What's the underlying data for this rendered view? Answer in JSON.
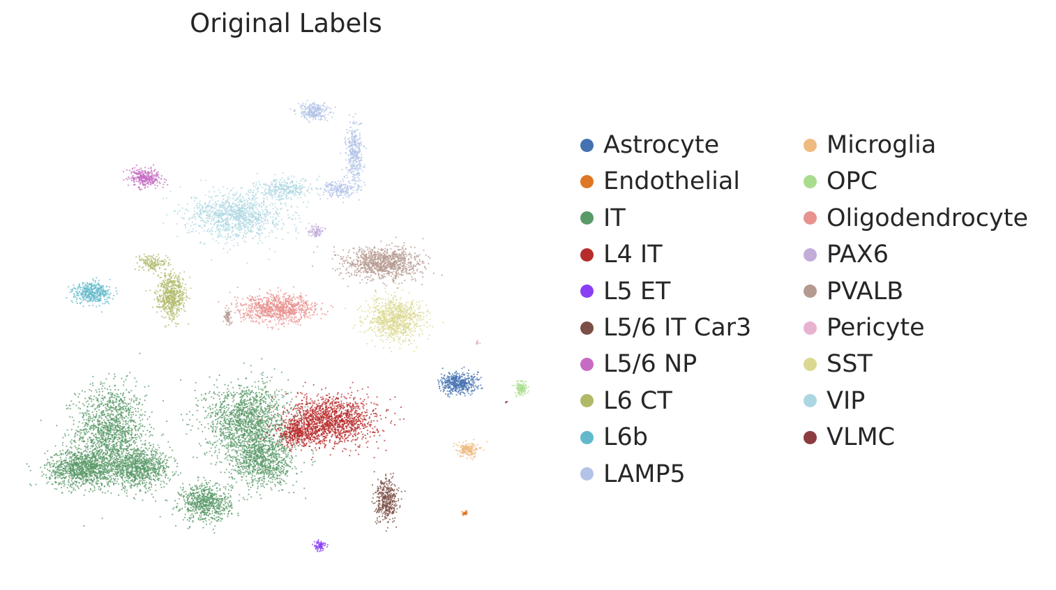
{
  "chart_data": {
    "type": "scatter",
    "title": "Original Labels",
    "xlabel": "",
    "ylabel": "",
    "grid": false,
    "axes_visible": false,
    "legend_placement": "right",
    "legend_columns": 2,
    "categories": [
      {
        "name": "Astrocyte",
        "color": "#4471b0"
      },
      {
        "name": "Endothelial",
        "color": "#dd7726"
      },
      {
        "name": "IT",
        "color": "#5a9a68"
      },
      {
        "name": "L4 IT",
        "color": "#b82b2b"
      },
      {
        "name": "L5 ET",
        "color": "#8a3ff5"
      },
      {
        "name": "L5/6 IT Car3",
        "color": "#7b4f46"
      },
      {
        "name": "L5/6 NP",
        "color": "#c66bc3"
      },
      {
        "name": "L6 CT",
        "color": "#b1b969"
      },
      {
        "name": "L6b",
        "color": "#62b9cb"
      },
      {
        "name": "LAMP5",
        "color": "#b2c3e7"
      },
      {
        "name": "Microglia",
        "color": "#eeba7e"
      },
      {
        "name": "OPC",
        "color": "#a9dd8d"
      },
      {
        "name": "Oligodendrocyte",
        "color": "#e8928f"
      },
      {
        "name": "PAX6",
        "color": "#c1add8"
      },
      {
        "name": "PVALB",
        "color": "#b59a90"
      },
      {
        "name": "Pericyte",
        "color": "#e8b2d1"
      },
      {
        "name": "SST",
        "color": "#dbd991"
      },
      {
        "name": "VIP",
        "color": "#acd7e2"
      },
      {
        "name": "VLMC",
        "color": "#8c3b41"
      }
    ],
    "clusters": [
      {
        "label": "IT",
        "x": 2.3,
        "y": 3.9,
        "sx": 1.1,
        "sy": 1.7,
        "n": 1400
      },
      {
        "label": "IT",
        "x": 1.4,
        "y": 2.5,
        "sx": 1.1,
        "sy": 0.7,
        "n": 1100
      },
      {
        "label": "IT",
        "x": 3.2,
        "y": 2.5,
        "sx": 1.0,
        "sy": 0.7,
        "n": 900
      },
      {
        "label": "IT",
        "x": 5.3,
        "y": 1.2,
        "sx": 0.8,
        "sy": 0.7,
        "n": 700
      },
      {
        "label": "IT",
        "x": 6.6,
        "y": 4.3,
        "sx": 1.3,
        "sy": 1.4,
        "n": 1500
      },
      {
        "label": "IT",
        "x": 7.1,
        "y": 2.8,
        "sx": 1.0,
        "sy": 1.0,
        "n": 900
      },
      {
        "label": "L4 IT",
        "x": 9.3,
        "y": 4.3,
        "sx": 1.4,
        "sy": 0.9,
        "n": 1400
      },
      {
        "label": "L4 IT",
        "x": 8.2,
        "y": 3.8,
        "sx": 0.7,
        "sy": 0.5,
        "n": 400
      },
      {
        "label": "Oligodendrocyte",
        "x": 7.6,
        "y": 8.5,
        "sx": 1.2,
        "sy": 0.5,
        "n": 900
      },
      {
        "label": "VIP",
        "x": 6.3,
        "y": 12.0,
        "sx": 1.5,
        "sy": 0.9,
        "n": 1100
      },
      {
        "label": "VIP",
        "x": 7.8,
        "y": 13.0,
        "sx": 0.9,
        "sy": 0.4,
        "n": 300
      },
      {
        "label": "LAMP5",
        "x": 8.7,
        "y": 15.9,
        "sx": 0.5,
        "sy": 0.3,
        "n": 250
      },
      {
        "label": "LAMP5",
        "x": 10.0,
        "y": 14.3,
        "sx": 0.25,
        "sy": 1.1,
        "n": 350
      },
      {
        "label": "LAMP5",
        "x": 9.5,
        "y": 13.0,
        "sx": 0.6,
        "sy": 0.35,
        "n": 200
      },
      {
        "label": "PAX6",
        "x": 8.8,
        "y": 11.4,
        "sx": 0.25,
        "sy": 0.2,
        "n": 90
      },
      {
        "label": "PVALB",
        "x": 10.9,
        "y": 10.2,
        "sx": 1.2,
        "sy": 0.6,
        "n": 1000
      },
      {
        "label": "SST",
        "x": 11.3,
        "y": 8.1,
        "sx": 0.9,
        "sy": 0.8,
        "n": 900
      },
      {
        "label": "L5/6 NP",
        "x": 3.4,
        "y": 13.4,
        "sx": 0.5,
        "sy": 0.35,
        "n": 300
      },
      {
        "label": "L6 CT",
        "x": 4.2,
        "y": 9.0,
        "sx": 0.45,
        "sy": 0.8,
        "n": 600
      },
      {
        "label": "L6 CT",
        "x": 3.6,
        "y": 10.2,
        "sx": 0.4,
        "sy": 0.3,
        "n": 150
      },
      {
        "label": "L6b",
        "x": 1.7,
        "y": 9.1,
        "sx": 0.6,
        "sy": 0.4,
        "n": 400
      },
      {
        "label": "Astrocyte",
        "x": 13.3,
        "y": 5.7,
        "sx": 0.6,
        "sy": 0.4,
        "n": 450
      },
      {
        "label": "OPC",
        "x": 15.3,
        "y": 5.5,
        "sx": 0.2,
        "sy": 0.25,
        "n": 120
      },
      {
        "label": "Microglia",
        "x": 13.6,
        "y": 3.2,
        "sx": 0.35,
        "sy": 0.25,
        "n": 180
      },
      {
        "label": "L5/6 IT Car3",
        "x": 11.0,
        "y": 1.3,
        "sx": 0.35,
        "sy": 0.8,
        "n": 400
      },
      {
        "label": "L5 ET",
        "x": 8.9,
        "y": -0.4,
        "sx": 0.2,
        "sy": 0.2,
        "n": 80
      },
      {
        "label": "Endothelial",
        "x": 13.5,
        "y": 0.8,
        "sx": 0.08,
        "sy": 0.1,
        "n": 25
      },
      {
        "label": "Pericyte",
        "x": 13.9,
        "y": 7.2,
        "sx": 0.08,
        "sy": 0.08,
        "n": 12
      },
      {
        "label": "VLMC",
        "x": 14.8,
        "y": 5.0,
        "sx": 0.05,
        "sy": 0.05,
        "n": 4
      },
      {
        "label": "PVALB",
        "x": 6.0,
        "y": 8.2,
        "sx": 0.12,
        "sy": 0.25,
        "n": 60
      }
    ],
    "xlim": [
      0,
      16
    ],
    "ylim": [
      -1,
      18
    ]
  }
}
